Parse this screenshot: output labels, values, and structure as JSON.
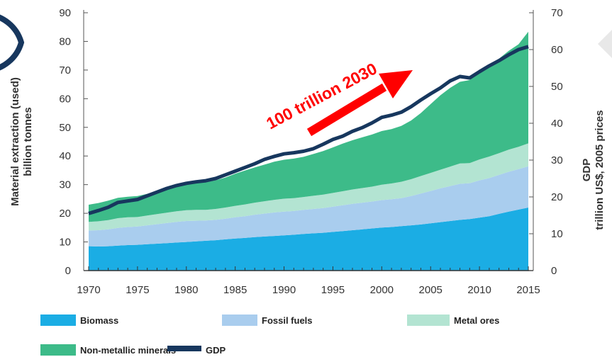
{
  "chart_data": {
    "type": "area",
    "title": "",
    "x": [
      1970,
      1971,
      1972,
      1973,
      1974,
      1975,
      1976,
      1977,
      1978,
      1979,
      1980,
      1981,
      1982,
      1983,
      1984,
      1985,
      1986,
      1987,
      1988,
      1989,
      1990,
      1991,
      1992,
      1993,
      1994,
      1995,
      1996,
      1997,
      1998,
      1999,
      2000,
      2001,
      2002,
      2003,
      2004,
      2005,
      2006,
      2007,
      2008,
      2009,
      2010,
      2011,
      2012,
      2013,
      2014,
      2015
    ],
    "x_ticks": [
      "1970",
      "1975",
      "1980",
      "1985",
      "1990",
      "1995",
      "2000",
      "2005",
      "2010",
      "2015"
    ],
    "xlim": [
      1970,
      2015
    ],
    "y_left": {
      "label_line1": "Material extraction (used)",
      "label_line2": "billion tonnes",
      "ticks": [
        "0",
        "10",
        "20",
        "30",
        "40",
        "50",
        "60",
        "70",
        "80",
        "90"
      ],
      "lim": [
        0,
        90
      ]
    },
    "y_right": {
      "label_line1": "GDP",
      "label_line2": "trillion US$, 2005 prices",
      "ticks": [
        "0",
        "10",
        "20",
        "30",
        "40",
        "50",
        "60",
        "70"
      ],
      "lim": [
        0,
        70
      ]
    },
    "stacked": true,
    "series": [
      {
        "name": "Biomass",
        "color": "#1bade4",
        "values": [
          8.5,
          8.4,
          8.5,
          8.7,
          8.9,
          9.0,
          9.2,
          9.4,
          9.6,
          9.8,
          10.0,
          10.2,
          10.4,
          10.6,
          10.9,
          11.2,
          11.4,
          11.7,
          11.9,
          12.1,
          12.3,
          12.5,
          12.8,
          13.0,
          13.2,
          13.5,
          13.8,
          14.1,
          14.4,
          14.7,
          15.0,
          15.2,
          15.5,
          15.8,
          16.1,
          16.5,
          16.9,
          17.3,
          17.7,
          18.0,
          18.5,
          19.0,
          19.8,
          20.6,
          21.3,
          22.0
        ]
      },
      {
        "name": "Fossil fuels",
        "color": "#a9cdee",
        "values": [
          5.5,
          5.7,
          5.9,
          6.2,
          6.3,
          6.4,
          6.6,
          6.8,
          7.0,
          7.2,
          7.3,
          7.2,
          7.1,
          7.1,
          7.2,
          7.4,
          7.6,
          7.8,
          8.0,
          8.2,
          8.3,
          8.3,
          8.4,
          8.5,
          8.6,
          8.8,
          9.0,
          9.2,
          9.3,
          9.4,
          9.6,
          9.7,
          9.8,
          10.2,
          10.8,
          11.3,
          11.8,
          12.2,
          12.6,
          12.5,
          13.0,
          13.3,
          13.6,
          13.9,
          14.1,
          14.4
        ]
      },
      {
        "name": "Metal ores",
        "color": "#b3e4d2",
        "values": [
          3.0,
          3.1,
          3.2,
          3.4,
          3.4,
          3.3,
          3.4,
          3.5,
          3.6,
          3.7,
          3.8,
          3.8,
          3.7,
          3.8,
          3.9,
          4.0,
          4.1,
          4.2,
          4.3,
          4.4,
          4.5,
          4.5,
          4.5,
          4.6,
          4.7,
          4.8,
          4.9,
          5.0,
          5.1,
          5.2,
          5.4,
          5.5,
          5.7,
          5.9,
          6.1,
          6.3,
          6.5,
          6.8,
          7.1,
          7.0,
          7.3,
          7.5,
          7.6,
          7.7,
          7.8,
          8.0
        ]
      },
      {
        "name": "Non-metallic minerals",
        "color": "#3dbb89",
        "values": [
          6.0,
          6.4,
          6.8,
          7.1,
          7.2,
          7.3,
          7.6,
          8.0,
          8.4,
          8.8,
          9.2,
          9.4,
          9.6,
          10.0,
          10.5,
          11.2,
          11.8,
          12.3,
          12.8,
          13.3,
          13.6,
          13.8,
          14.0,
          14.6,
          15.2,
          15.9,
          16.6,
          17.2,
          17.7,
          18.2,
          18.7,
          19.0,
          19.5,
          20.5,
          22.0,
          24.0,
          26.0,
          27.5,
          28.5,
          29.0,
          30.5,
          32.0,
          33.0,
          34.5,
          35.8,
          39.0
        ]
      }
    ],
    "line_series": {
      "name": "GDP",
      "color": "#17375e",
      "axis": "right",
      "values": [
        15.5,
        16.3,
        17.2,
        18.5,
        18.9,
        19.3,
        20.3,
        21.3,
        22.3,
        23.1,
        23.7,
        24.1,
        24.4,
        25.0,
        26.0,
        27.0,
        28.0,
        29.0,
        30.2,
        31.0,
        31.7,
        32.0,
        32.4,
        33.1,
        34.3,
        35.6,
        36.5,
        37.8,
        38.8,
        40.1,
        41.6,
        42.2,
        43.0,
        44.5,
        46.3,
        48.0,
        49.6,
        51.5,
        52.7,
        52.3,
        54.0,
        55.6,
        57.0,
        58.6,
        60.0,
        60.8
      ]
    },
    "annotations": [
      {
        "text": "100 trillion 2030",
        "color": "#ff0000"
      }
    ],
    "legend_position": "bottom-left",
    "grid": false
  }
}
